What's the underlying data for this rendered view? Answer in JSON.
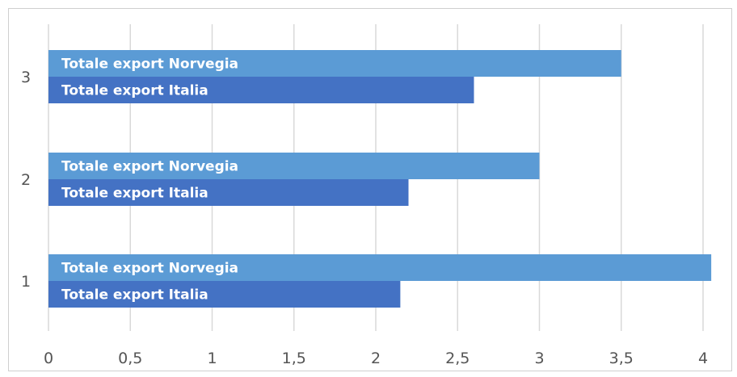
{
  "chart_data": {
    "type": "bar",
    "orientation": "horizontal",
    "categories": [
      "1",
      "2",
      "3"
    ],
    "series": [
      {
        "name": "Totale export Norvegia",
        "values": [
          4.05,
          3.0,
          3.5
        ],
        "color": "#5b9bd5"
      },
      {
        "name": "Totale export Italia",
        "values": [
          2.15,
          2.2,
          2.6
        ],
        "color": "#4472c4"
      }
    ],
    "xticks": [
      "0",
      "0,5",
      "1",
      "1,5",
      "2",
      "2,5",
      "3",
      "3,5",
      "4"
    ],
    "xlim": [
      0,
      4
    ],
    "xlabel": "",
    "ylabel": "",
    "title": "",
    "grid": "vertical",
    "legend": "none; series names printed inside bars"
  }
}
